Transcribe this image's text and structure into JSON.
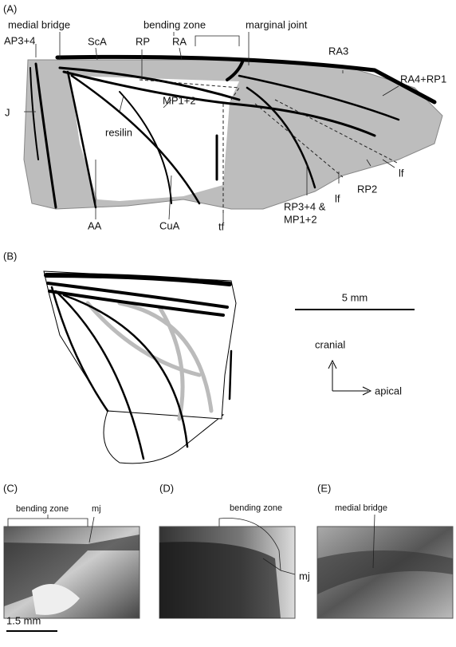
{
  "panels": [
    {
      "label": "(A)",
      "annotations": [
        "medial bridge",
        "bending zone",
        "marginal joint",
        "AP3+4",
        "ScA",
        "RP",
        "RA",
        "RA3",
        "RA4+RP1",
        "J",
        "resilin",
        "MP1+2",
        "lf",
        "RP2",
        "lf",
        "RP3+4 &",
        "MP1+2",
        "AA",
        "CuA",
        "tf"
      ]
    },
    {
      "label": "(B)",
      "scale_bar": "5 mm",
      "axes": [
        "cranial",
        "apical"
      ]
    },
    {
      "label": "(C)",
      "annotations": [
        "bending zone",
        "mj"
      ],
      "scale_bar": "1.5 mm"
    },
    {
      "label": "(D)",
      "annotations": [
        "bending zone",
        "mj"
      ]
    },
    {
      "label": "(E)",
      "annotations": [
        "medial bridge"
      ]
    }
  ]
}
